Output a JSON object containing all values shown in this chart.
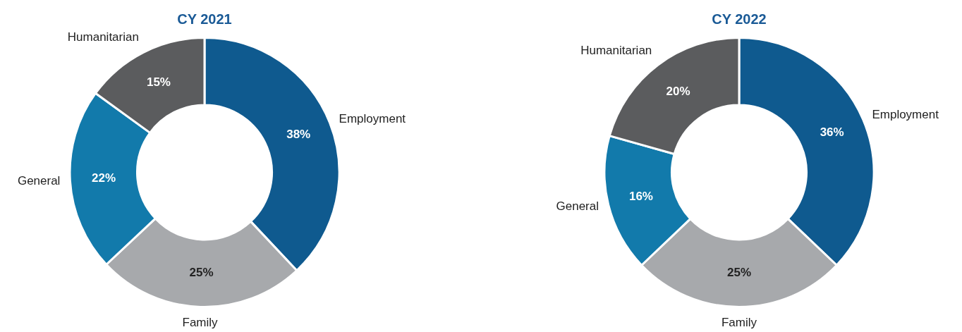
{
  "chart_data": [
    {
      "type": "donut",
      "title": "CY 2021",
      "categories": [
        "Employment",
        "Family",
        "General",
        "Humanitarian"
      ],
      "values": [
        38,
        25,
        22,
        15
      ],
      "value_labels": [
        "38%",
        "25%",
        "22%",
        "15%"
      ],
      "colors": [
        "#0f5a8f",
        "#a7a9ac",
        "#127aab",
        "#5b5c5e"
      ]
    },
    {
      "type": "donut",
      "title": "CY 2022",
      "categories": [
        "Employment",
        "Family",
        "General",
        "Humanitarian"
      ],
      "values": [
        36,
        25,
        16,
        20
      ],
      "value_labels": [
        "36%",
        "25%",
        "16%",
        "20%"
      ],
      "colors": [
        "#0f5a8f",
        "#a7a9ac",
        "#127aab",
        "#5b5c5e"
      ]
    }
  ]
}
